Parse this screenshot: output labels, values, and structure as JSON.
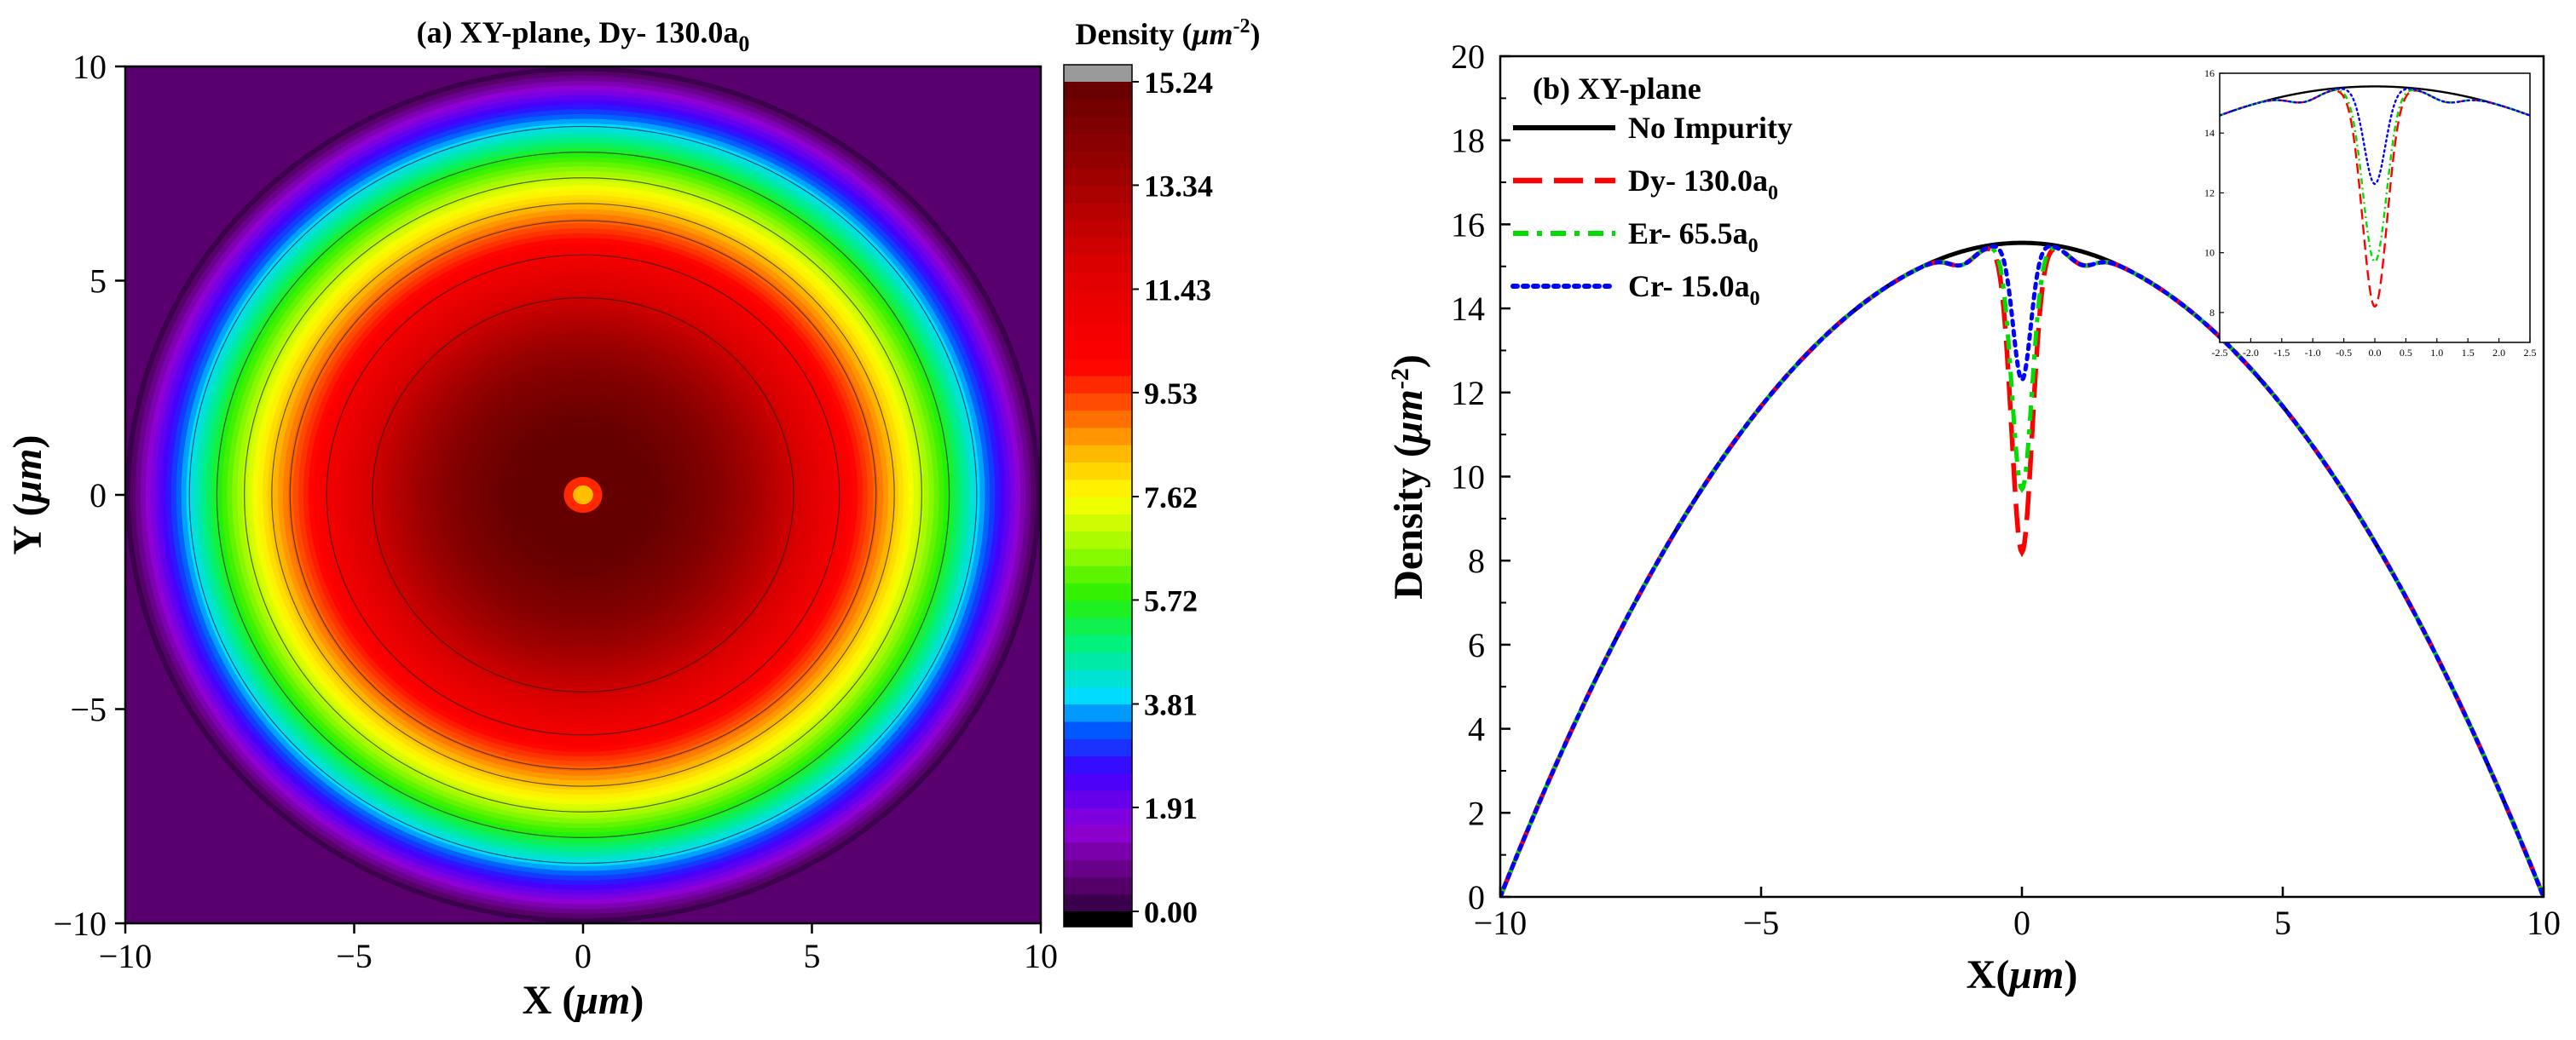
{
  "chart_data": [
    {
      "type": "heatmap",
      "title_prefix": "(a) XY-plane,  Dy- 130.0a",
      "title_sub": "0",
      "xlabel_prefix": "X (",
      "xlabel_unit": "μm",
      "xlabel_suffix": ")",
      "ylabel_prefix": "Y (",
      "ylabel_unit": "μm",
      "ylabel_suffix": ")",
      "xlim": [
        -10,
        10
      ],
      "ylim": [
        -10,
        10
      ],
      "xticks": [
        "−10",
        "−5",
        "0",
        "5",
        "10"
      ],
      "yticks": [
        "−10",
        "−5",
        "0",
        "5",
        "10"
      ],
      "colorbar": {
        "title_prefix": "Density (",
        "title_unit": "μm",
        "title_sup": "-2",
        "title_suffix": ")",
        "min": 0.0,
        "max": 15.24,
        "ticks": [
          "0.00",
          "1.91",
          "3.81",
          "5.72",
          "7.62",
          "9.53",
          "11.43",
          "13.34",
          "15.24"
        ]
      },
      "density_profile": {
        "peak": 15.56,
        "radius_um": 10,
        "impurity_dip": 8.2,
        "impurity_width_um": 0.28
      },
      "contour_radii_um": [
        8.6,
        8.0,
        7.4,
        6.8,
        6.4,
        5.6,
        4.6
      ]
    },
    {
      "type": "line",
      "title": "(b) XY-plane",
      "xlabel_prefix": "X(",
      "xlabel_unit": "μm",
      "xlabel_suffix": ")",
      "ylabel_prefix": "Density (",
      "ylabel_unit": "μm",
      "ylabel_sup": "-2",
      "ylabel_suffix": ")",
      "xlim": [
        -10,
        10
      ],
      "ylim": [
        0,
        20
      ],
      "xticks": [
        "−10",
        "−5",
        "0",
        "5",
        "10"
      ],
      "yticks": [
        "0",
        "2",
        "4",
        "6",
        "8",
        "10",
        "12",
        "14",
        "16",
        "18",
        "20"
      ],
      "series": [
        {
          "name": "No Impurity",
          "sub": "",
          "color": "#000000",
          "style": "solid",
          "dip_min": null,
          "dip_width": 0
        },
        {
          "name": "Dy- 130.0a",
          "sub": "0",
          "color": "#ff0000",
          "style": "dash",
          "dip_min": 8.2,
          "dip_width": 0.28
        },
        {
          "name": "Er- 65.5a",
          "sub": "0",
          "color": "#00dd00",
          "style": "dashdot",
          "dip_min": 9.7,
          "dip_width": 0.27
        },
        {
          "name": "Cr- 15.0a",
          "sub": "0",
          "color": "#0000ff",
          "style": "dot",
          "dip_min": 12.3,
          "dip_width": 0.24
        }
      ],
      "peak": 15.56,
      "inset": {
        "xlim": [
          -2.5,
          2.5
        ],
        "ylim": [
          7,
          16
        ],
        "xticks": [
          "-2.5",
          "-2.0",
          "-1.5",
          "-1.0",
          "-0.5",
          "0.0",
          "0.5",
          "1.0",
          "1.5",
          "2.0",
          "2.5"
        ],
        "yticks": [
          "8",
          "10",
          "12",
          "14",
          "16"
        ]
      }
    }
  ]
}
